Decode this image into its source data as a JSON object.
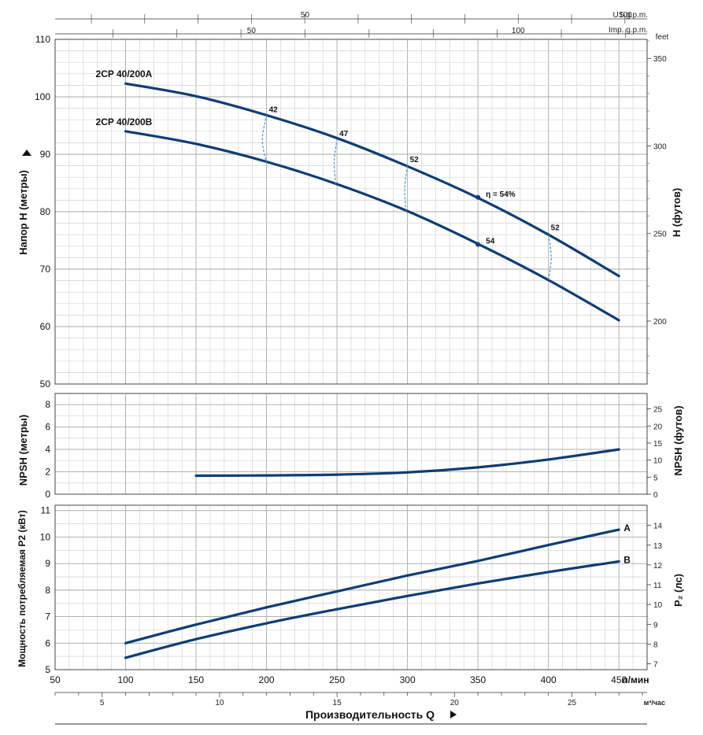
{
  "chart_data": {
    "type": "line",
    "colors": {
      "curve": "#0d3d74",
      "efficiency": "#3a8fd8",
      "grid": "#c8c8c8"
    },
    "flow_axis": {
      "xlim": [
        50,
        470
      ],
      "ticks": [
        50,
        100,
        150,
        200,
        250,
        300,
        350,
        400,
        450
      ],
      "unit": "л/мин",
      "title": "Производительность Q",
      "m3h_unit": "м³/час",
      "m3h_ticks": [
        5,
        10,
        15,
        20,
        25
      ],
      "usgpm_unit": "US g.p.m.",
      "usgpm_ticks": [
        50,
        100
      ],
      "impgpm_unit": "Imp. g.p.m.",
      "impgpm_ticks": [
        50,
        100
      ]
    },
    "head_panel": {
      "ylabel": "Напор H (метры)",
      "ylim": [
        50,
        110
      ],
      "yticks": [
        50,
        60,
        70,
        80,
        90,
        100,
        110
      ],
      "right_unit": "feet",
      "right_ylabel": "H (футов)",
      "right_ticks": [
        200,
        250,
        300,
        350
      ],
      "series": [
        {
          "name": "2CP 40/200A",
          "x": [
            100,
            150,
            200,
            250,
            300,
            350,
            400,
            450
          ],
          "y": [
            102.3,
            100.1,
            96.8,
            92.8,
            87.9,
            82.4,
            76.0,
            68.8
          ]
        },
        {
          "name": "2CP 40/200B",
          "x": [
            100,
            150,
            200,
            250,
            300,
            350,
            400,
            450
          ],
          "y": [
            94.0,
            91.8,
            88.7,
            84.8,
            80.1,
            74.4,
            68.1,
            61.1
          ]
        }
      ],
      "efficiency_lines": [
        {
          "label": "42",
          "x": [
            200,
            197,
            200
          ],
          "y": [
            88.4,
            92.5,
            96.8
          ]
        },
        {
          "label": "47",
          "x": [
            249,
            248,
            250
          ],
          "y": [
            84.8,
            88.8,
            92.6
          ]
        },
        {
          "label": "52",
          "x": [
            299,
            298,
            300
          ],
          "y": [
            80.1,
            84.1,
            88.1
          ]
        },
        {
          "label": "52",
          "x": [
            400,
            402,
            400
          ],
          "y": [
            68.1,
            72.1,
            76.2
          ]
        }
      ],
      "efficiency_points": [
        {
          "label": "η = 54%",
          "x": 350,
          "y": 82.5
        },
        {
          "label": "54",
          "x": 350,
          "y": 74.3
        }
      ]
    },
    "npsh_panel": {
      "ylabel": "NPSH (метры)",
      "ylim": [
        0,
        9
      ],
      "yticks": [
        0,
        2,
        4,
        6,
        8
      ],
      "right_ylabel": "NPSH (футов)",
      "right_ticks": [
        0,
        5,
        10,
        15,
        20,
        25
      ],
      "series": [
        {
          "name": "NPSH",
          "x": [
            150,
            200,
            250,
            300,
            350,
            400,
            450
          ],
          "y": [
            1.65,
            1.68,
            1.75,
            1.95,
            2.4,
            3.1,
            4.0
          ]
        }
      ]
    },
    "power_panel": {
      "ylabel": "Мощность потребляемая P2 (кВт)",
      "ylim": [
        5,
        11.2
      ],
      "yticks": [
        5,
        6,
        7,
        8,
        9,
        10,
        11
      ],
      "right_ylabel": "P₂ (лс)",
      "right_ticks": [
        7,
        8,
        9,
        10,
        11,
        12,
        13,
        14
      ],
      "series": [
        {
          "name": "A",
          "x": [
            100,
            150,
            200,
            250,
            300,
            350,
            400,
            450
          ],
          "y": [
            6.0,
            6.7,
            7.35,
            7.95,
            8.55,
            9.1,
            9.7,
            10.28
          ]
        },
        {
          "name": "B",
          "x": [
            100,
            150,
            200,
            250,
            300,
            350,
            400,
            450
          ],
          "y": [
            5.45,
            6.15,
            6.75,
            7.28,
            7.78,
            8.25,
            8.68,
            9.08
          ]
        }
      ]
    }
  }
}
